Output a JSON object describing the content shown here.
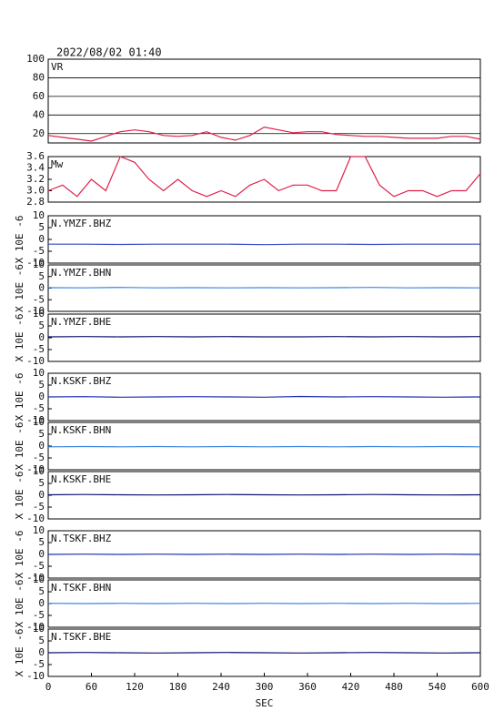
{
  "chart_data": [
    {
      "type": "line",
      "title": "2022/08/02 01:40",
      "xlim": [
        0,
        600
      ],
      "ylim": [
        10,
        100
      ],
      "yticks": [
        20,
        40,
        60,
        80,
        100
      ],
      "grid": true,
      "x": [
        0,
        20,
        40,
        60,
        80,
        100,
        120,
        140,
        160,
        180,
        200,
        220,
        240,
        260,
        280,
        300,
        320,
        340,
        360,
        380,
        400,
        420,
        440,
        460,
        480,
        500,
        520,
        540,
        560,
        580,
        600
      ],
      "series": [
        {
          "name": "VR",
          "color": "#e0204a",
          "values": [
            18,
            16,
            14,
            12,
            17,
            22,
            24,
            22,
            18,
            17,
            18,
            22,
            16,
            13,
            18,
            27,
            24,
            21,
            22,
            22,
            19,
            18,
            17,
            17,
            16,
            15,
            15,
            15,
            17,
            17,
            14
          ]
        }
      ]
    },
    {
      "type": "line",
      "xlim": [
        0,
        600
      ],
      "ylim": [
        2.8,
        3.6
      ],
      "yticks": [
        2.8,
        {
          "value": 3,
          "label": "3.0"
        },
        3.2,
        3.4,
        3.6
      ],
      "grid": false,
      "x": [
        0,
        20,
        40,
        60,
        80,
        100,
        120,
        140,
        160,
        180,
        200,
        220,
        240,
        260,
        280,
        300,
        320,
        340,
        360,
        380,
        400,
        420,
        440,
        460,
        480,
        500,
        520,
        540,
        560,
        580,
        600
      ],
      "series": [
        {
          "name": "Mw",
          "color": "#e0204a",
          "values": [
            3.0,
            3.1,
            2.9,
            3.2,
            3.0,
            3.6,
            3.5,
            3.2,
            3.0,
            3.2,
            3.0,
            2.9,
            3.0,
            2.9,
            3.1,
            3.2,
            3.0,
            3.1,
            3.1,
            3.0,
            3.0,
            3.6,
            3.6,
            3.1,
            2.9,
            3.0,
            3.0,
            2.9,
            3.0,
            3.0,
            3.3
          ]
        }
      ]
    },
    {
      "type": "line",
      "ylabel": "X 10E -6",
      "xlim": [
        0,
        600
      ],
      "ylim": [
        -10,
        10
      ],
      "yticks": [
        -10,
        -5,
        0,
        5,
        10
      ],
      "x": [
        0,
        50,
        100,
        150,
        200,
        250,
        300,
        350,
        400,
        450,
        500,
        550,
        600
      ],
      "series": [
        {
          "name": "N.YMZF.BHZ",
          "color": "#3048c0",
          "values": [
            -2,
            -2,
            -2.1,
            -2,
            -2,
            -2,
            -2.2,
            -2,
            -2,
            -2.1,
            -2,
            -2,
            -2
          ]
        }
      ]
    },
    {
      "type": "line",
      "ylabel": "X 10E -6",
      "xlim": [
        0,
        600
      ],
      "ylim": [
        -10,
        10
      ],
      "yticks": [
        -10,
        -5,
        0,
        5,
        10
      ],
      "x": [
        0,
        50,
        100,
        150,
        200,
        250,
        300,
        350,
        400,
        450,
        500,
        550,
        600
      ],
      "series": [
        {
          "name": "N.YMZF.BHN",
          "color": "#3a86e0",
          "values": [
            0.2,
            0.1,
            0.3,
            0.1,
            0.2,
            0.1,
            0.2,
            0.1,
            0.2,
            0.3,
            0.1,
            0.2,
            0.1
          ]
        }
      ]
    },
    {
      "type": "line",
      "ylabel": "X 10E -6",
      "xlim": [
        0,
        600
      ],
      "ylim": [
        -10,
        10
      ],
      "yticks": [
        -10,
        -5,
        0,
        5,
        10
      ],
      "x": [
        0,
        50,
        100,
        150,
        200,
        250,
        300,
        350,
        400,
        450,
        500,
        550,
        600
      ],
      "series": [
        {
          "name": "N.YMZF.BHE",
          "color": "#101070",
          "values": [
            0.4,
            0.5,
            0.4,
            0.5,
            0.4,
            0.5,
            0.4,
            0.4,
            0.5,
            0.4,
            0.5,
            0.4,
            0.5
          ]
        }
      ]
    },
    {
      "type": "line",
      "ylabel": "X 10E -6",
      "xlim": [
        0,
        600
      ],
      "ylim": [
        -10,
        10
      ],
      "yticks": [
        -10,
        -5,
        0,
        5,
        10
      ],
      "x": [
        0,
        50,
        100,
        150,
        200,
        250,
        300,
        350,
        400,
        450,
        500,
        550,
        600
      ],
      "series": [
        {
          "name": "N.KSKF.BHZ",
          "color": "#2030b0",
          "values": [
            0,
            0.1,
            -0.1,
            0,
            0.1,
            0,
            -0.1,
            0.2,
            0,
            0.1,
            0,
            -0.1,
            0
          ]
        }
      ]
    },
    {
      "type": "line",
      "ylabel": "X 10E -6",
      "xlim": [
        0,
        600
      ],
      "ylim": [
        -10,
        10
      ],
      "yticks": [
        -10,
        -5,
        0,
        5,
        10
      ],
      "x": [
        0,
        50,
        100,
        150,
        200,
        250,
        300,
        350,
        400,
        450,
        500,
        550,
        600
      ],
      "series": [
        {
          "name": "N.KSKF.BHN",
          "color": "#3a86e0",
          "values": [
            -0.3,
            -0.2,
            -0.3,
            -0.2,
            -0.3,
            -0.2,
            -0.3,
            -0.2,
            -0.3,
            -0.2,
            -0.3,
            -0.2,
            -0.3
          ]
        }
      ]
    },
    {
      "type": "line",
      "ylabel": "X 10E -6",
      "xlim": [
        0,
        600
      ],
      "ylim": [
        -10,
        10
      ],
      "yticks": [
        -10,
        -5,
        0,
        5,
        10
      ],
      "x": [
        0,
        50,
        100,
        150,
        200,
        250,
        300,
        350,
        400,
        450,
        500,
        550,
        600
      ],
      "series": [
        {
          "name": "N.KSKF.BHE",
          "color": "#101070",
          "values": [
            0.2,
            0.3,
            0.2,
            0.1,
            0.2,
            0.3,
            0.2,
            0.1,
            0.2,
            0.3,
            0.2,
            0.1,
            0.2
          ]
        }
      ]
    },
    {
      "type": "line",
      "ylabel": "X 10E -6",
      "xlim": [
        0,
        600
      ],
      "ylim": [
        -10,
        10
      ],
      "yticks": [
        -10,
        -5,
        0,
        5,
        10
      ],
      "x": [
        0,
        50,
        100,
        150,
        200,
        250,
        300,
        350,
        400,
        450,
        500,
        550,
        600
      ],
      "series": [
        {
          "name": "N.TSKF.BHZ",
          "color": "#2030b0",
          "values": [
            0,
            0.1,
            0,
            0.1,
            0,
            0.1,
            0,
            0.1,
            0,
            0.1,
            0,
            0.1,
            0
          ]
        }
      ]
    },
    {
      "type": "line",
      "ylabel": "X 10E -6",
      "xlim": [
        0,
        600
      ],
      "ylim": [
        -10,
        10
      ],
      "yticks": [
        -10,
        -5,
        0,
        5,
        10
      ],
      "x": [
        0,
        50,
        100,
        150,
        200,
        250,
        300,
        350,
        400,
        450,
        500,
        550,
        600
      ],
      "series": [
        {
          "name": "N.TSKF.BHN",
          "color": "#3a86e0",
          "values": [
            0.1,
            0,
            0.1,
            0,
            0.1,
            0,
            0.1,
            0,
            0.1,
            0,
            0.1,
            0,
            0.1
          ]
        }
      ]
    },
    {
      "type": "line",
      "ylabel": "X 10E -6",
      "xlim": [
        0,
        600
      ],
      "ylim": [
        -10,
        10
      ],
      "yticks": [
        -10,
        -5,
        0,
        5,
        10
      ],
      "x": [
        0,
        50,
        100,
        150,
        200,
        250,
        300,
        350,
        400,
        450,
        500,
        550,
        600
      ],
      "series": [
        {
          "name": "N.TSKF.BHE",
          "color": "#101070",
          "values": [
            0,
            0.1,
            0,
            -0.1,
            0,
            0.1,
            0,
            -0.1,
            0,
            0.1,
            0,
            -0.1,
            0
          ]
        }
      ],
      "xticks": [
        0,
        60,
        120,
        180,
        240,
        300,
        360,
        420,
        480,
        540,
        600
      ],
      "xlabel": "SEC"
    }
  ]
}
